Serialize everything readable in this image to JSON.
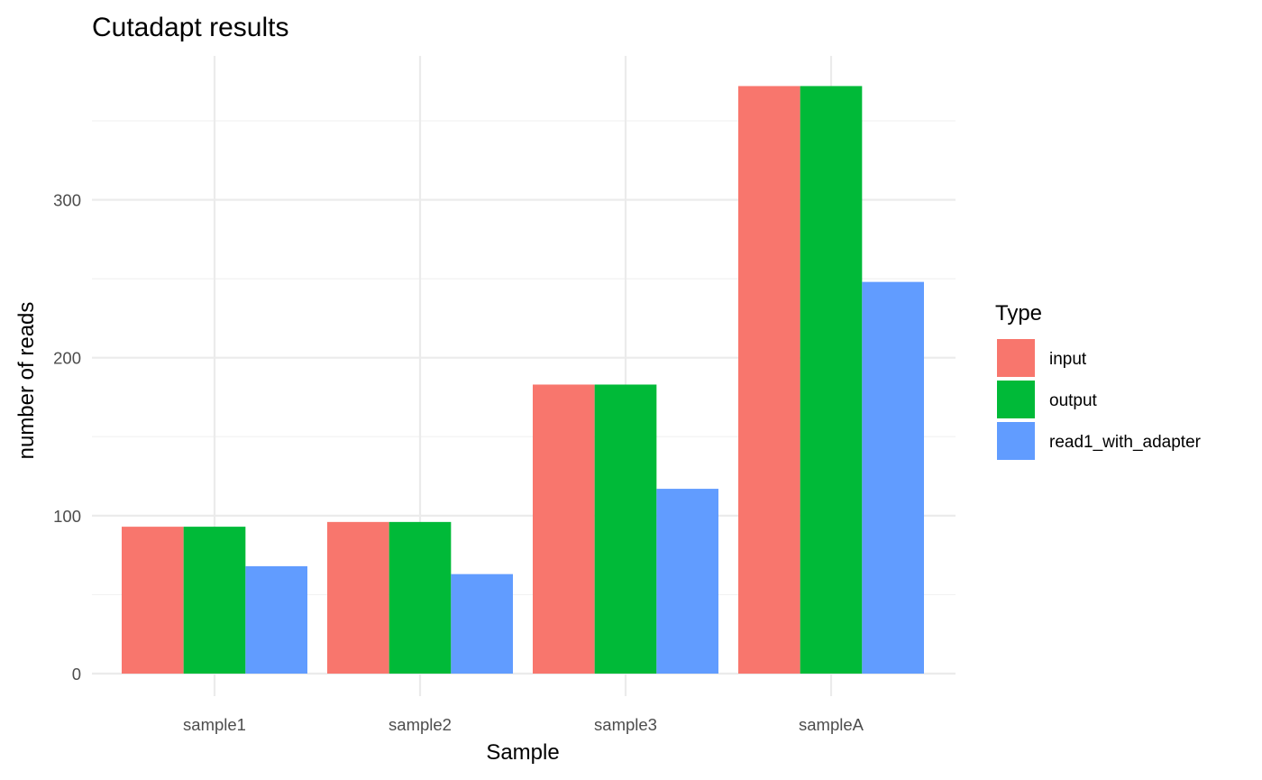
{
  "chart_data": {
    "type": "bar",
    "title": "Cutadapt results",
    "xlabel": "Sample",
    "ylabel": "number of reads",
    "categories": [
      "sample1",
      "sample2",
      "sample3",
      "sampleA"
    ],
    "series": [
      {
        "name": "input",
        "color": "#F8766D",
        "values": [
          93,
          96,
          183,
          372
        ]
      },
      {
        "name": "output",
        "color": "#00BA38",
        "values": [
          93,
          96,
          183,
          372
        ]
      },
      {
        "name": "read1_with_adapter",
        "color": "#619CFF",
        "values": [
          68,
          63,
          117,
          248
        ]
      }
    ],
    "ylim": [
      0,
      390
    ],
    "yticks": [
      0,
      100,
      200,
      300
    ],
    "legend": {
      "title": "Type",
      "position": "right"
    },
    "grid": true
  }
}
